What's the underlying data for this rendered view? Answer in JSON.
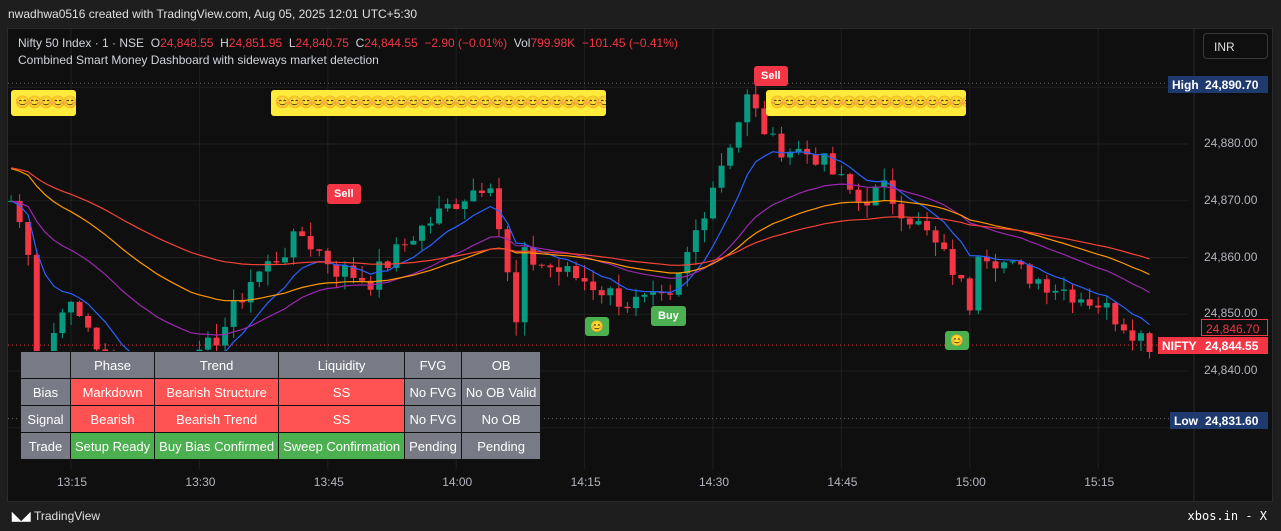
{
  "header": {
    "credit": "nwadhwa0516 created with TradingView.com, Aug 05, 2025 12:01 UTC+5:30"
  },
  "legend": {
    "symbol": "Nifty 50 Index · 1 · NSE",
    "o_label": "O",
    "o": "24,848.55",
    "h_label": "H",
    "h": "24,851.95",
    "l_label": "L",
    "l": "24,840.75",
    "c_label": "C",
    "c": "24,844.55",
    "change": "−2.90 (−0.01%)",
    "vol_label": "Vol",
    "vol": "799.98K",
    "vol_change": "−101.45 (−0.41%)",
    "indicator": "Combined Smart Money Dashboard with sideways market detection"
  },
  "currency": "INR",
  "price_axis": {
    "ticks": [
      "24,880.00",
      "24,870.00",
      "24,860.00",
      "24,850.00",
      "24,840.00"
    ],
    "high_label": "High",
    "high": "24,890.70",
    "low_label": "Low",
    "low": "24,831.60",
    "symbol_tag": "NIFTY",
    "last": "24,844.55",
    "crosshair": "24,846.70"
  },
  "time_axis": [
    "13:15",
    "13:30",
    "13:45",
    "14:00",
    "14:15",
    "14:30",
    "14:45",
    "15:00",
    "15:15"
  ],
  "chart_data": {
    "type": "candlestick",
    "interval": "1 minute",
    "price_range": [
      24826,
      24895
    ],
    "price_path": [
      [
        "13:08",
        24870
      ],
      [
        "13:10",
        24862
      ],
      [
        "13:11",
        24836
      ],
      [
        "13:14",
        24852
      ],
      [
        "13:17",
        24848
      ],
      [
        "13:20",
        24838
      ],
      [
        "13:25",
        24838
      ],
      [
        "13:30",
        24842
      ],
      [
        "13:33",
        24848
      ],
      [
        "13:36",
        24856
      ],
      [
        "13:42",
        24864
      ],
      [
        "13:46",
        24858
      ],
      [
        "13:50",
        24856
      ],
      [
        "13:55",
        24864
      ],
      [
        "14:00",
        24870
      ],
      [
        "14:04",
        24874
      ],
      [
        "14:07",
        24848
      ],
      [
        "14:08",
        24860
      ],
      [
        "14:15",
        24856
      ],
      [
        "14:20",
        24852
      ],
      [
        "14:25",
        24852
      ],
      [
        "14:30",
        24873
      ],
      [
        "14:34",
        24888
      ],
      [
        "14:37",
        24880
      ],
      [
        "14:42",
        24878
      ],
      [
        "14:47",
        24870
      ],
      [
        "14:50",
        24872
      ],
      [
        "14:55",
        24864
      ],
      [
        "14:58",
        24858
      ],
      [
        "15:00",
        24852
      ],
      [
        "15:01",
        24862
      ],
      [
        "15:05",
        24858
      ],
      [
        "15:10",
        24855
      ],
      [
        "15:15",
        24852
      ],
      [
        "15:21",
        24845
      ]
    ],
    "colors": {
      "up": "#089981",
      "down": "#f23645",
      "ma1": "#2962ff",
      "ma2": "#9c27b0",
      "ma3": "#ff9800",
      "ma4": "#f44336"
    }
  },
  "signals": [
    {
      "label": "Sell",
      "time": "13:47",
      "type": "sell"
    },
    {
      "label": "Sell",
      "time": "14:35",
      "type": "sell"
    },
    {
      "label": "Buy",
      "time": "14:25",
      "type": "buy"
    }
  ],
  "emoji": "😊😊😊😊😊😊😊😊😊😊😊😊😊😊😊😊😊😊😊😊😊😊😊😊😊😊😊😊😊😊😊😊😊😊😊😊😊😊😊😊",
  "smiley": "😊",
  "dashboard": {
    "headers": [
      "",
      "Phase",
      "Trend",
      "Liquidity",
      "FVG",
      "OB"
    ],
    "rows": [
      {
        "cells": [
          "Bias",
          "Markdown",
          "Bearish Structure",
          "SS",
          "No FVG",
          "No OB Valid"
        ],
        "styles": [
          "g",
          "r",
          "r",
          "r",
          "g",
          "g"
        ]
      },
      {
        "cells": [
          "Signal",
          "Bearish",
          "Bearish Trend",
          "SS",
          "No FVG",
          "No OB"
        ],
        "styles": [
          "g",
          "r",
          "r",
          "r",
          "g",
          "g"
        ]
      },
      {
        "cells": [
          "Trade",
          "Setup Ready",
          "Buy Bias Confirmed",
          "Sweep Confirmation",
          "Pending",
          "Pending"
        ],
        "styles": [
          "g",
          "gr",
          "gr",
          "gr",
          "g",
          "g"
        ]
      }
    ]
  },
  "footer": {
    "brand": "TradingView",
    "source": "xbos.in - X"
  }
}
